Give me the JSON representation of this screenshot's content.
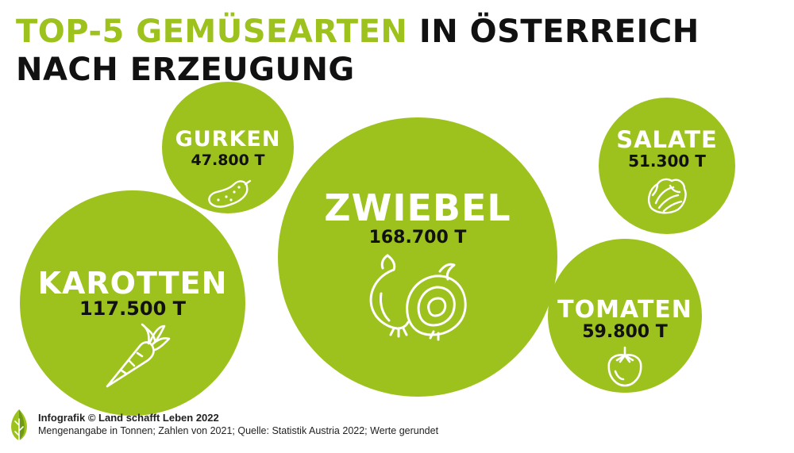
{
  "title": {
    "highlight": "TOP-5 GEMÜSEARTEN",
    "rest": "IN ÖSTERREICH NACH ERZEUGUNG"
  },
  "chart_data": {
    "type": "bubble",
    "unit": "T",
    "items": [
      {
        "label": "ZWIEBEL",
        "value": 168700,
        "value_label": "168.700 T",
        "icon": "onion-icon"
      },
      {
        "label": "KAROTTEN",
        "value": 117500,
        "value_label": "117.500 T",
        "icon": "carrot-icon"
      },
      {
        "label": "TOMATEN",
        "value": 59800,
        "value_label": "59.800 T",
        "icon": "tomato-icon"
      },
      {
        "label": "SALATE",
        "value": 51300,
        "value_label": "51.300 T",
        "icon": "lettuce-icon"
      },
      {
        "label": "GURKEN",
        "value": 47800,
        "value_label": "47.800 T",
        "icon": "cucumber-icon"
      }
    ]
  },
  "colors": {
    "accent": "#9dc21e",
    "text": "#111111",
    "icon": "#ffffff"
  },
  "footer": {
    "credit": "Infografik © Land schafft Leben 2022",
    "note": "Mengenangabe in Tonnen; Zahlen von 2021; Quelle: Statistik Austria 2022; Werte gerundet"
  }
}
